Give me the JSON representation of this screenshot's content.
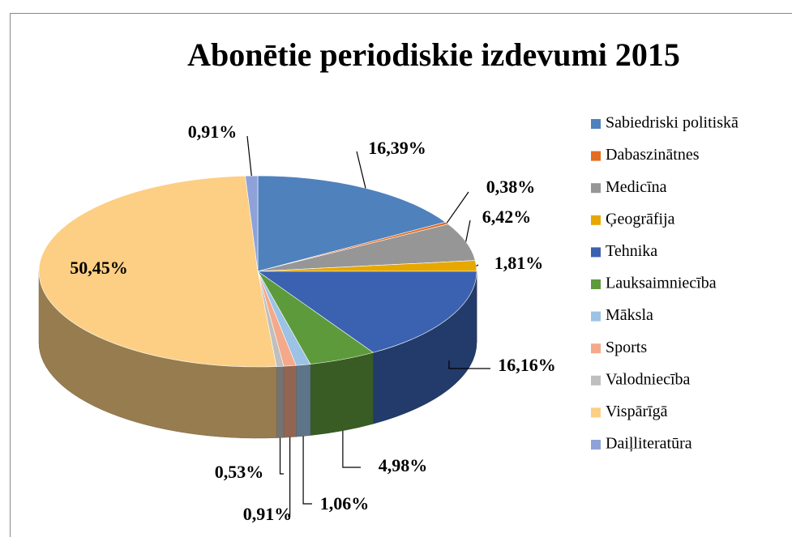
{
  "chart_data": {
    "type": "pie3d",
    "title": "Abonētie periodiskie izdevumi 2015",
    "categories": [
      "Sabiedriski politiskā",
      "Dabaszinātnes",
      "Medicīna",
      "Ģeogrāfija",
      "Tehnika",
      "Lauksaimniecība",
      "Māksla",
      "Sports",
      "Valodniecība",
      "Vispārīgā",
      "Daiļliteratūra"
    ],
    "values": [
      16.39,
      0.38,
      6.42,
      1.81,
      16.16,
      4.98,
      1.06,
      0.91,
      0.53,
      50.45,
      0.91
    ],
    "value_labels": [
      "16,39%",
      "0,38%",
      "6,42%",
      "1,81%",
      "16,16%",
      "4,98%",
      "1,06%",
      "0,91%",
      "0,53%",
      "50,45%",
      "0,91%"
    ],
    "colors": [
      "#4f81bd",
      "#e36c1f",
      "#969696",
      "#e6a800",
      "#3a62b0",
      "#5d9a3b",
      "#9cc2e5",
      "#f4a98a",
      "#bfbfbf",
      "#fccf84",
      "#8fa2d8"
    ],
    "legend": "right"
  }
}
